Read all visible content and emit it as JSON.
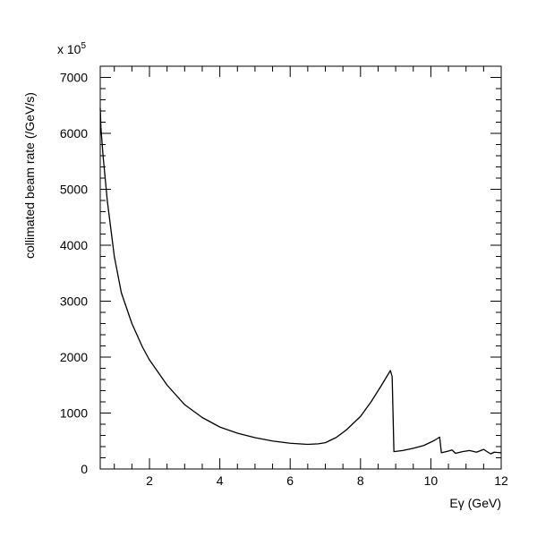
{
  "chart_data": {
    "type": "line",
    "title": "",
    "xlabel": "Eγ (GeV)",
    "ylabel": "collimated beam rate (/GeV/s)",
    "y_multiplier_label": "x 10",
    "y_multiplier_exponent": "5",
    "xlim": [
      0.6,
      12
    ],
    "ylim": [
      0,
      7200
    ],
    "grid": false,
    "legend": "none",
    "x_ticks": [
      2,
      4,
      6,
      8,
      10,
      12
    ],
    "x_tick_labels": [
      "2",
      "4",
      "6",
      "8",
      "10",
      "12"
    ],
    "y_ticks": [
      0,
      1000,
      2000,
      3000,
      4000,
      5000,
      6000,
      7000
    ],
    "y_tick_labels": [
      "0",
      "1000",
      "2000",
      "3000",
      "4000",
      "5000",
      "6000",
      "7000"
    ],
    "series": [
      {
        "color": "#000000",
        "x": [
          0.6,
          0.62,
          0.68,
          0.8,
          1.0,
          1.2,
          1.5,
          1.8,
          2.0,
          2.5,
          3.0,
          3.5,
          4.0,
          4.5,
          5.0,
          5.5,
          6.0,
          6.5,
          6.8,
          7.0,
          7.3,
          7.6,
          8.0,
          8.3,
          8.6,
          8.85,
          8.9,
          8.95,
          9.2,
          9.5,
          9.8,
          10.1,
          10.25,
          10.3,
          10.5,
          10.6,
          10.7,
          10.9,
          11.1,
          11.3,
          11.5,
          11.7,
          11.8,
          12.0
        ],
        "y": [
          6450,
          6100,
          5600,
          4800,
          3800,
          3150,
          2600,
          2180,
          1950,
          1500,
          1150,
          920,
          750,
          640,
          560,
          500,
          460,
          440,
          450,
          470,
          560,
          700,
          940,
          1200,
          1500,
          1760,
          1650,
          310,
          330,
          370,
          420,
          510,
          570,
          290,
          320,
          340,
          280,
          310,
          330,
          300,
          350,
          270,
          300,
          290
        ]
      }
    ]
  }
}
